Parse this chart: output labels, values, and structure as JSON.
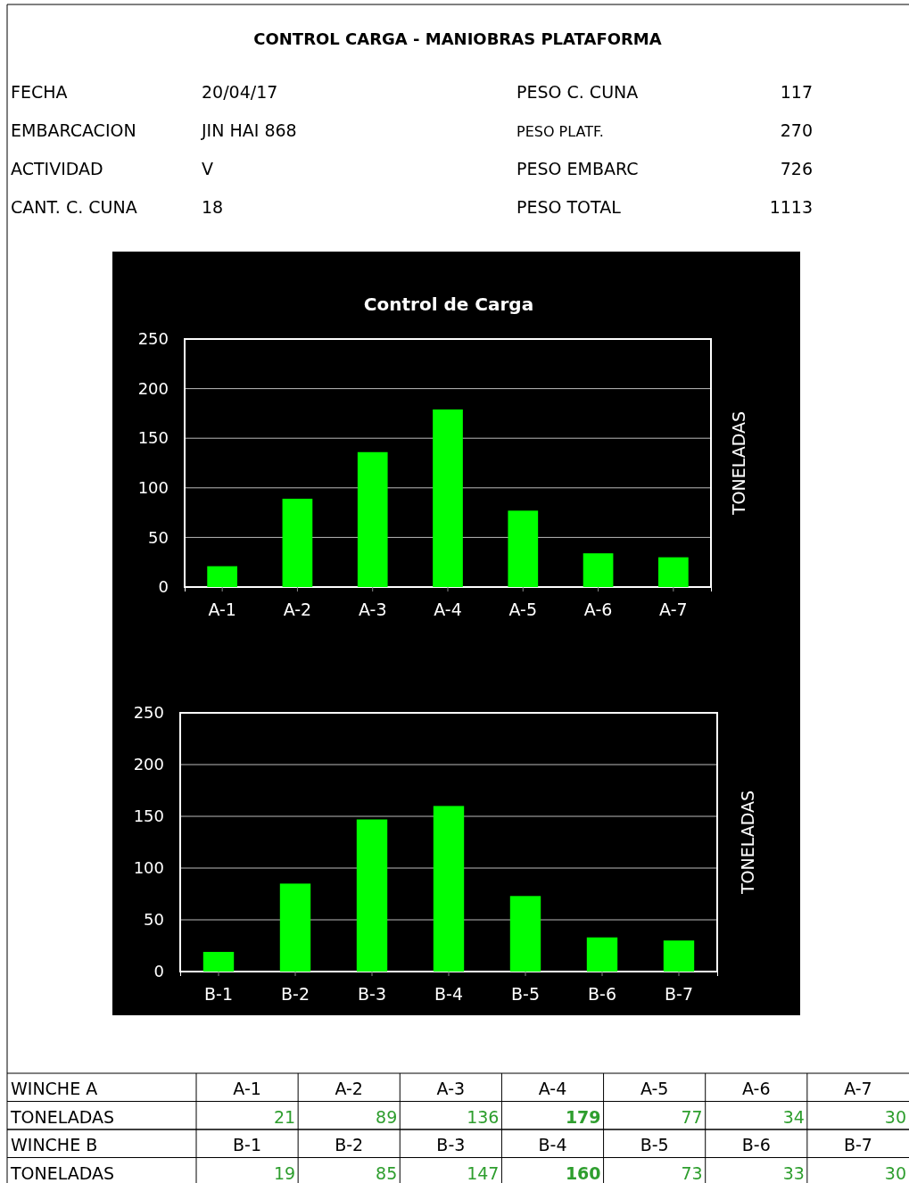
{
  "chart_data": [
    {
      "type": "bar",
      "title": "Control de Carga",
      "ylabel": "TONELADAS",
      "categories": [
        "A-1",
        "A-2",
        "A-3",
        "A-4",
        "A-5",
        "A-6",
        "A-7"
      ],
      "values": [
        21,
        89,
        136,
        179,
        77,
        34,
        30
      ],
      "color": "#00ff00",
      "ylim": [
        0,
        250
      ],
      "yticks": [
        0,
        50,
        100,
        150,
        200,
        250
      ],
      "grid": "y",
      "annotations": [
        "CONTROL CARGA - MANIOBRAS PLATAFORMA",
        "FECHA",
        "20/04/17",
        "PESO C. CUNA",
        "117",
        "EMBARCACION",
        "JIN HAI 868",
        "PESO PLATF.",
        "270",
        "ACTIVIDAD",
        "V",
        "PESO EMBARC",
        "726",
        "CANT. C. CUNA",
        "18",
        "PESO TOTAL",
        "1113",
        "WINCHE A",
        "TONELADAS",
        "21",
        "89",
        "136",
        "179",
        "77",
        "34",
        "30"
      ]
    },
    {
      "type": "bar",
      "ylabel": "TONELADAS",
      "categories": [
        "B-1",
        "B-2",
        "B-3",
        "B-4",
        "B-5",
        "B-6",
        "B-7"
      ],
      "values": [
        19,
        85,
        147,
        160,
        73,
        33,
        30
      ],
      "color": "#00ff00",
      "ylim": [
        0,
        250
      ],
      "yticks": [
        0,
        50,
        100,
        150,
        200,
        250
      ],
      "grid": "y",
      "annotations": [
        "WINCHE  B",
        "TONELADAS",
        "19",
        "85",
        "147",
        "160",
        "73",
        "33",
        "30"
      ]
    }
  ]
}
